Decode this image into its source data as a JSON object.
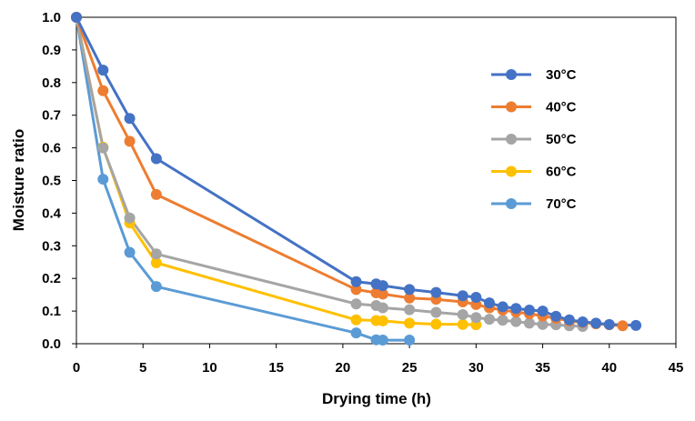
{
  "chart_data": {
    "type": "line",
    "title": "",
    "xlabel": "Drying time (h)",
    "ylabel": "Moisture ratio",
    "xlim": [
      0,
      45
    ],
    "ylim": [
      0,
      1.0
    ],
    "xticks": [
      0,
      5,
      10,
      15,
      20,
      25,
      30,
      35,
      40,
      45
    ],
    "yticks": [
      0.0,
      0.1,
      0.2,
      0.3,
      0.4,
      0.5,
      0.6,
      0.7,
      0.8,
      0.9,
      1.0
    ],
    "xtick_labels": [
      "0",
      "5",
      "10",
      "15",
      "20",
      "25",
      "30",
      "35",
      "40",
      "45"
    ],
    "ytick_labels": [
      "0.0",
      "0.1",
      "0.2",
      "0.3",
      "0.4",
      "0.5",
      "0.6",
      "0.7",
      "0.8",
      "0.9",
      "1.0"
    ],
    "grid": false,
    "legend_position": "right",
    "series": [
      {
        "name": "30°C",
        "color": "#4472C4",
        "points": [
          [
            0,
            1.0
          ],
          [
            2,
            0.838
          ],
          [
            4,
            0.69
          ],
          [
            6,
            0.567
          ],
          [
            21,
            0.19
          ],
          [
            22.5,
            0.183
          ],
          [
            23,
            0.178
          ],
          [
            25,
            0.166
          ],
          [
            27,
            0.157
          ],
          [
            29,
            0.147
          ],
          [
            30,
            0.142
          ],
          [
            31,
            0.125
          ],
          [
            32,
            0.113
          ],
          [
            33,
            0.108
          ],
          [
            34,
            0.103
          ],
          [
            35,
            0.1
          ],
          [
            36,
            0.084
          ],
          [
            37,
            0.073
          ],
          [
            38,
            0.067
          ],
          [
            39,
            0.063
          ],
          [
            40,
            0.059
          ],
          [
            42,
            0.056
          ]
        ]
      },
      {
        "name": "40°C",
        "color": "#ED7D31",
        "points": [
          [
            0,
            1.0
          ],
          [
            2,
            0.775
          ],
          [
            4,
            0.62
          ],
          [
            6,
            0.457
          ],
          [
            21,
            0.166
          ],
          [
            22.5,
            0.156
          ],
          [
            23,
            0.152
          ],
          [
            25,
            0.14
          ],
          [
            27,
            0.136
          ],
          [
            29,
            0.128
          ],
          [
            30,
            0.12
          ],
          [
            31,
            0.11
          ],
          [
            32,
            0.103
          ],
          [
            33,
            0.097
          ],
          [
            34,
            0.092
          ],
          [
            35,
            0.085
          ],
          [
            36,
            0.078
          ],
          [
            37,
            0.07
          ],
          [
            38,
            0.065
          ],
          [
            39,
            0.061
          ],
          [
            40,
            0.058
          ],
          [
            41,
            0.055
          ]
        ]
      },
      {
        "name": "50°C",
        "color": "#A5A5A5",
        "points": [
          [
            0,
            1.0
          ],
          [
            2,
            0.6
          ],
          [
            4,
            0.385
          ],
          [
            6,
            0.275
          ],
          [
            21,
            0.122
          ],
          [
            22.5,
            0.117
          ],
          [
            23,
            0.11
          ],
          [
            25,
            0.104
          ],
          [
            27,
            0.096
          ],
          [
            29,
            0.089
          ],
          [
            30,
            0.08
          ],
          [
            31,
            0.075
          ],
          [
            32,
            0.072
          ],
          [
            33,
            0.068
          ],
          [
            34,
            0.063
          ],
          [
            35,
            0.059
          ],
          [
            36,
            0.058
          ],
          [
            37,
            0.055
          ],
          [
            38,
            0.053
          ]
        ]
      },
      {
        "name": "60°C",
        "color": "#FFC000",
        "points": [
          [
            0,
            1.0
          ],
          [
            2,
            0.602
          ],
          [
            4,
            0.37
          ],
          [
            6,
            0.248
          ],
          [
            21,
            0.073
          ],
          [
            22.5,
            0.071
          ],
          [
            23,
            0.07
          ],
          [
            25,
            0.063
          ],
          [
            27,
            0.06
          ],
          [
            29,
            0.059
          ],
          [
            30,
            0.058
          ]
        ]
      },
      {
        "name": "70°C",
        "color": "#5B9BD5",
        "points": [
          [
            0,
            1.0
          ],
          [
            2,
            0.504
          ],
          [
            4,
            0.28
          ],
          [
            6,
            0.175
          ],
          [
            21,
            0.033
          ],
          [
            22.5,
            0.012
          ],
          [
            23,
            0.011
          ],
          [
            25,
            0.011
          ]
        ]
      }
    ]
  }
}
